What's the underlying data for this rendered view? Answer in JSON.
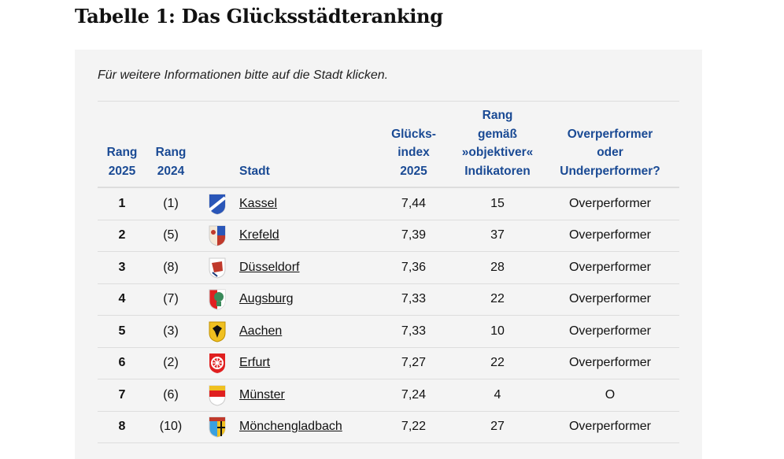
{
  "title": "Tabelle 1: Das Glücksstädteranking",
  "note": "Für weitere Informationen bitte auf die Stadt klicken.",
  "headers": {
    "rang2025": [
      "Rang",
      "2025"
    ],
    "rang2024": [
      "Rang",
      "2024"
    ],
    "stadt": "Stadt",
    "index": [
      "Glücks-",
      "index",
      "2025"
    ],
    "objektiv": [
      "Rang",
      "gemäß",
      "»objektiver«",
      "Indikatoren"
    ],
    "perf": [
      "Overperformer",
      "oder",
      "Underperformer?"
    ]
  },
  "rows": [
    {
      "r25": "1",
      "r24": "(1)",
      "city": "Kassel",
      "idx": "7,44",
      "obj": "15",
      "perf": "Overperformer",
      "crest": "kassel-crest-icon"
    },
    {
      "r25": "2",
      "r24": "(5)",
      "city": "Krefeld",
      "idx": "7,39",
      "obj": "37",
      "perf": "Overperformer",
      "crest": "krefeld-crest-icon"
    },
    {
      "r25": "3",
      "r24": "(8)",
      "city": "Düsseldorf",
      "idx": "7,36",
      "obj": "28",
      "perf": "Overperformer",
      "crest": "duesseldorf-crest-icon"
    },
    {
      "r25": "4",
      "r24": "(7)",
      "city": "Augsburg",
      "idx": "7,33",
      "obj": "22",
      "perf": "Overperformer",
      "crest": "augsburg-crest-icon"
    },
    {
      "r25": "5",
      "r24": "(3)",
      "city": "Aachen",
      "idx": "7,33",
      "obj": "10",
      "perf": "Overperformer",
      "crest": "aachen-crest-icon"
    },
    {
      "r25": "6",
      "r24": "(2)",
      "city": "Erfurt",
      "idx": "7,27",
      "obj": "22",
      "perf": "Overperformer",
      "crest": "erfurt-crest-icon"
    },
    {
      "r25": "7",
      "r24": "(6)",
      "city": "Münster",
      "idx": "7,24",
      "obj": "4",
      "perf": "O",
      "crest": "muenster-crest-icon"
    },
    {
      "r25": "8",
      "r24": "(10)",
      "city": "Mönchengladbach",
      "idx": "7,22",
      "obj": "27",
      "perf": "Overperformer",
      "crest": "moenchengladbach-crest-icon"
    }
  ]
}
